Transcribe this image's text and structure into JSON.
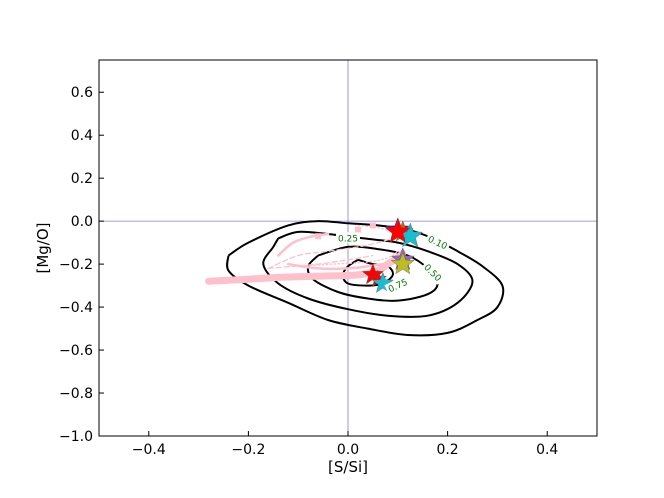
{
  "chart_data": {
    "type": "scatter",
    "xlabel": "[S/Si]",
    "ylabel": "[Mg/O]",
    "xlim": [
      -0.5,
      0.5
    ],
    "ylim": [
      -1.0,
      0.75
    ],
    "xticks": [
      -0.4,
      -0.2,
      0.0,
      0.2,
      0.4
    ],
    "yticks": [
      -1.0,
      -0.8,
      -0.6,
      -0.4,
      -0.2,
      0.0,
      0.2,
      0.4,
      0.6
    ],
    "xtick_labels": [
      "−0.4",
      "−0.2",
      "0.0",
      "0.2",
      "0.4"
    ],
    "ytick_labels": [
      "−1.0",
      "−0.8",
      "−0.6",
      "−0.4",
      "−0.2",
      "0.0",
      "0.2",
      "0.4",
      "0.6"
    ],
    "grid": false,
    "reference_lines": {
      "x": 0.0,
      "y": 0.0,
      "color": "#7f7fdf"
    },
    "contours": [
      {
        "level": "0.10",
        "label_at": [
          0.18,
          -0.1
        ],
        "label_rotation": 25,
        "points": [
          [
            -0.24,
            -0.16
          ],
          [
            -0.2,
            -0.1
          ],
          [
            -0.12,
            -0.02
          ],
          [
            -0.06,
            0.0
          ],
          [
            0.0,
            -0.01
          ],
          [
            0.06,
            -0.02
          ],
          [
            0.12,
            -0.04
          ],
          [
            0.17,
            -0.08
          ],
          [
            0.22,
            -0.14
          ],
          [
            0.27,
            -0.21
          ],
          [
            0.31,
            -0.3
          ],
          [
            0.3,
            -0.4
          ],
          [
            0.26,
            -0.46
          ],
          [
            0.2,
            -0.52
          ],
          [
            0.12,
            -0.53
          ],
          [
            0.04,
            -0.5
          ],
          [
            -0.04,
            -0.46
          ],
          [
            -0.12,
            -0.38
          ],
          [
            -0.2,
            -0.3
          ],
          [
            -0.24,
            -0.23
          ],
          [
            -0.24,
            -0.16
          ]
        ]
      },
      {
        "level": "0.25",
        "label_at": [
          0.0,
          -0.08
        ],
        "label_rotation": 0,
        "points": [
          [
            -0.14,
            -0.08
          ],
          [
            -0.1,
            -0.05
          ],
          [
            -0.04,
            -0.06
          ],
          [
            0.03,
            -0.08
          ],
          [
            0.1,
            -0.1
          ],
          [
            0.16,
            -0.14
          ],
          [
            0.22,
            -0.2
          ],
          [
            0.25,
            -0.28
          ],
          [
            0.22,
            -0.38
          ],
          [
            0.16,
            -0.44
          ],
          [
            0.08,
            -0.44
          ],
          [
            0.0,
            -0.41
          ],
          [
            -0.08,
            -0.36
          ],
          [
            -0.14,
            -0.29
          ],
          [
            -0.17,
            -0.2
          ],
          [
            -0.15,
            -0.12
          ],
          [
            -0.14,
            -0.08
          ]
        ]
      },
      {
        "level": "0.50",
        "label_at": [
          0.17,
          -0.24
        ],
        "label_rotation": 45,
        "points": [
          [
            -0.06,
            -0.16
          ],
          [
            0.0,
            -0.12
          ],
          [
            0.06,
            -0.13
          ],
          [
            0.12,
            -0.16
          ],
          [
            0.16,
            -0.22
          ],
          [
            0.18,
            -0.29
          ],
          [
            0.16,
            -0.34
          ],
          [
            0.1,
            -0.37
          ],
          [
            0.04,
            -0.36
          ],
          [
            -0.02,
            -0.33
          ],
          [
            -0.07,
            -0.27
          ],
          [
            -0.08,
            -0.21
          ],
          [
            -0.06,
            -0.16
          ]
        ]
      },
      {
        "level": "0.75",
        "label_at": [
          0.1,
          -0.3
        ],
        "label_rotation": -25,
        "points": [
          [
            0.02,
            -0.18
          ],
          [
            0.05,
            -0.2
          ],
          [
            0.08,
            -0.21
          ],
          [
            0.09,
            -0.25
          ],
          [
            0.07,
            -0.29
          ],
          [
            0.04,
            -0.3
          ],
          [
            0.0,
            -0.29
          ],
          [
            -0.01,
            -0.25
          ],
          [
            0.0,
            -0.21
          ],
          [
            0.02,
            -0.18
          ]
        ]
      }
    ],
    "tracks": [
      {
        "style": "thick",
        "color": "#ffc0cb",
        "points": [
          [
            -0.28,
            -0.28
          ],
          [
            -0.2,
            -0.27
          ],
          [
            -0.12,
            -0.26
          ],
          [
            -0.04,
            -0.255
          ],
          [
            0.02,
            -0.25
          ],
          [
            0.06,
            -0.23
          ],
          [
            0.08,
            -0.2
          ],
          [
            0.1,
            -0.17
          ],
          [
            0.11,
            -0.15
          ]
        ]
      },
      {
        "style": "medium",
        "color": "#ffc0cb",
        "points": [
          [
            -0.14,
            -0.16
          ],
          [
            -0.11,
            -0.1
          ],
          [
            -0.07,
            -0.07
          ],
          [
            -0.04,
            -0.06
          ]
        ]
      },
      {
        "style": "medium",
        "color": "#ffc0cb",
        "points": [
          [
            -0.12,
            -0.2
          ],
          [
            -0.06,
            -0.22
          ],
          [
            0.0,
            -0.22
          ],
          [
            0.04,
            -0.21
          ],
          [
            0.07,
            -0.2
          ],
          [
            0.09,
            -0.19
          ]
        ]
      },
      {
        "style": "dashed",
        "color": "#ffc0cb",
        "points": [
          [
            -0.16,
            -0.22
          ],
          [
            -0.1,
            -0.16
          ],
          [
            -0.04,
            -0.14
          ],
          [
            0.02,
            -0.12
          ],
          [
            0.06,
            -0.1
          ],
          [
            0.09,
            -0.08
          ]
        ]
      },
      {
        "style": "dashed",
        "color": "#ffc0cb",
        "points": [
          [
            -0.16,
            -0.22
          ],
          [
            -0.06,
            -0.2
          ],
          [
            0.0,
            -0.18
          ],
          [
            0.05,
            -0.16
          ]
        ]
      },
      {
        "style": "dotted",
        "color": "#ffc0cb",
        "points": [
          [
            -0.1,
            -0.21
          ],
          [
            -0.03,
            -0.2
          ],
          [
            0.04,
            -0.19
          ],
          [
            0.08,
            -0.17
          ],
          [
            0.1,
            -0.14
          ]
        ]
      },
      {
        "style": "dotted",
        "color": "#ffc0cb",
        "points": [
          [
            0.02,
            -0.02
          ],
          [
            0.06,
            -0.03
          ],
          [
            0.09,
            -0.05
          ],
          [
            0.1,
            -0.05
          ]
        ]
      }
    ],
    "markers": [
      {
        "shape": "square",
        "color": "#ffc0cb",
        "x": 0.05,
        "y": -0.02
      },
      {
        "shape": "square",
        "color": "#ffc0cb",
        "x": 0.02,
        "y": -0.04
      },
      {
        "shape": "square",
        "color": "#ffc0cb",
        "x": 0.1,
        "y": -0.17
      },
      {
        "shape": "square",
        "color": "#ffc0cb",
        "x": -0.06,
        "y": -0.07
      },
      {
        "shape": "square",
        "color": "#ffc0cb",
        "x": 0.08,
        "y": -0.2
      },
      {
        "shape": "star",
        "color": "#800080",
        "x": 0.1,
        "y": -0.04,
        "size": 12
      },
      {
        "shape": "star",
        "color": "#cc6600",
        "x": 0.11,
        "y": -0.05,
        "size": 11
      },
      {
        "shape": "star",
        "color": "#17becf",
        "x": 0.125,
        "y": -0.07,
        "size": 13
      },
      {
        "shape": "star",
        "color": "#ff0000",
        "x": 0.1,
        "y": -0.05,
        "size": 13
      },
      {
        "shape": "star",
        "color": "#9467bd",
        "x": 0.11,
        "y": -0.18,
        "size": 12
      },
      {
        "shape": "star",
        "color": "#bcbd22",
        "x": 0.11,
        "y": -0.2,
        "size": 12
      },
      {
        "shape": "star",
        "color": "#ff0000",
        "x": 0.05,
        "y": -0.25,
        "size": 11
      },
      {
        "shape": "star",
        "color": "#ff0000",
        "x": 0.06,
        "y": -0.27,
        "size": 9
      },
      {
        "shape": "star",
        "color": "#17becf",
        "x": 0.07,
        "y": -0.29,
        "size": 11
      }
    ]
  }
}
